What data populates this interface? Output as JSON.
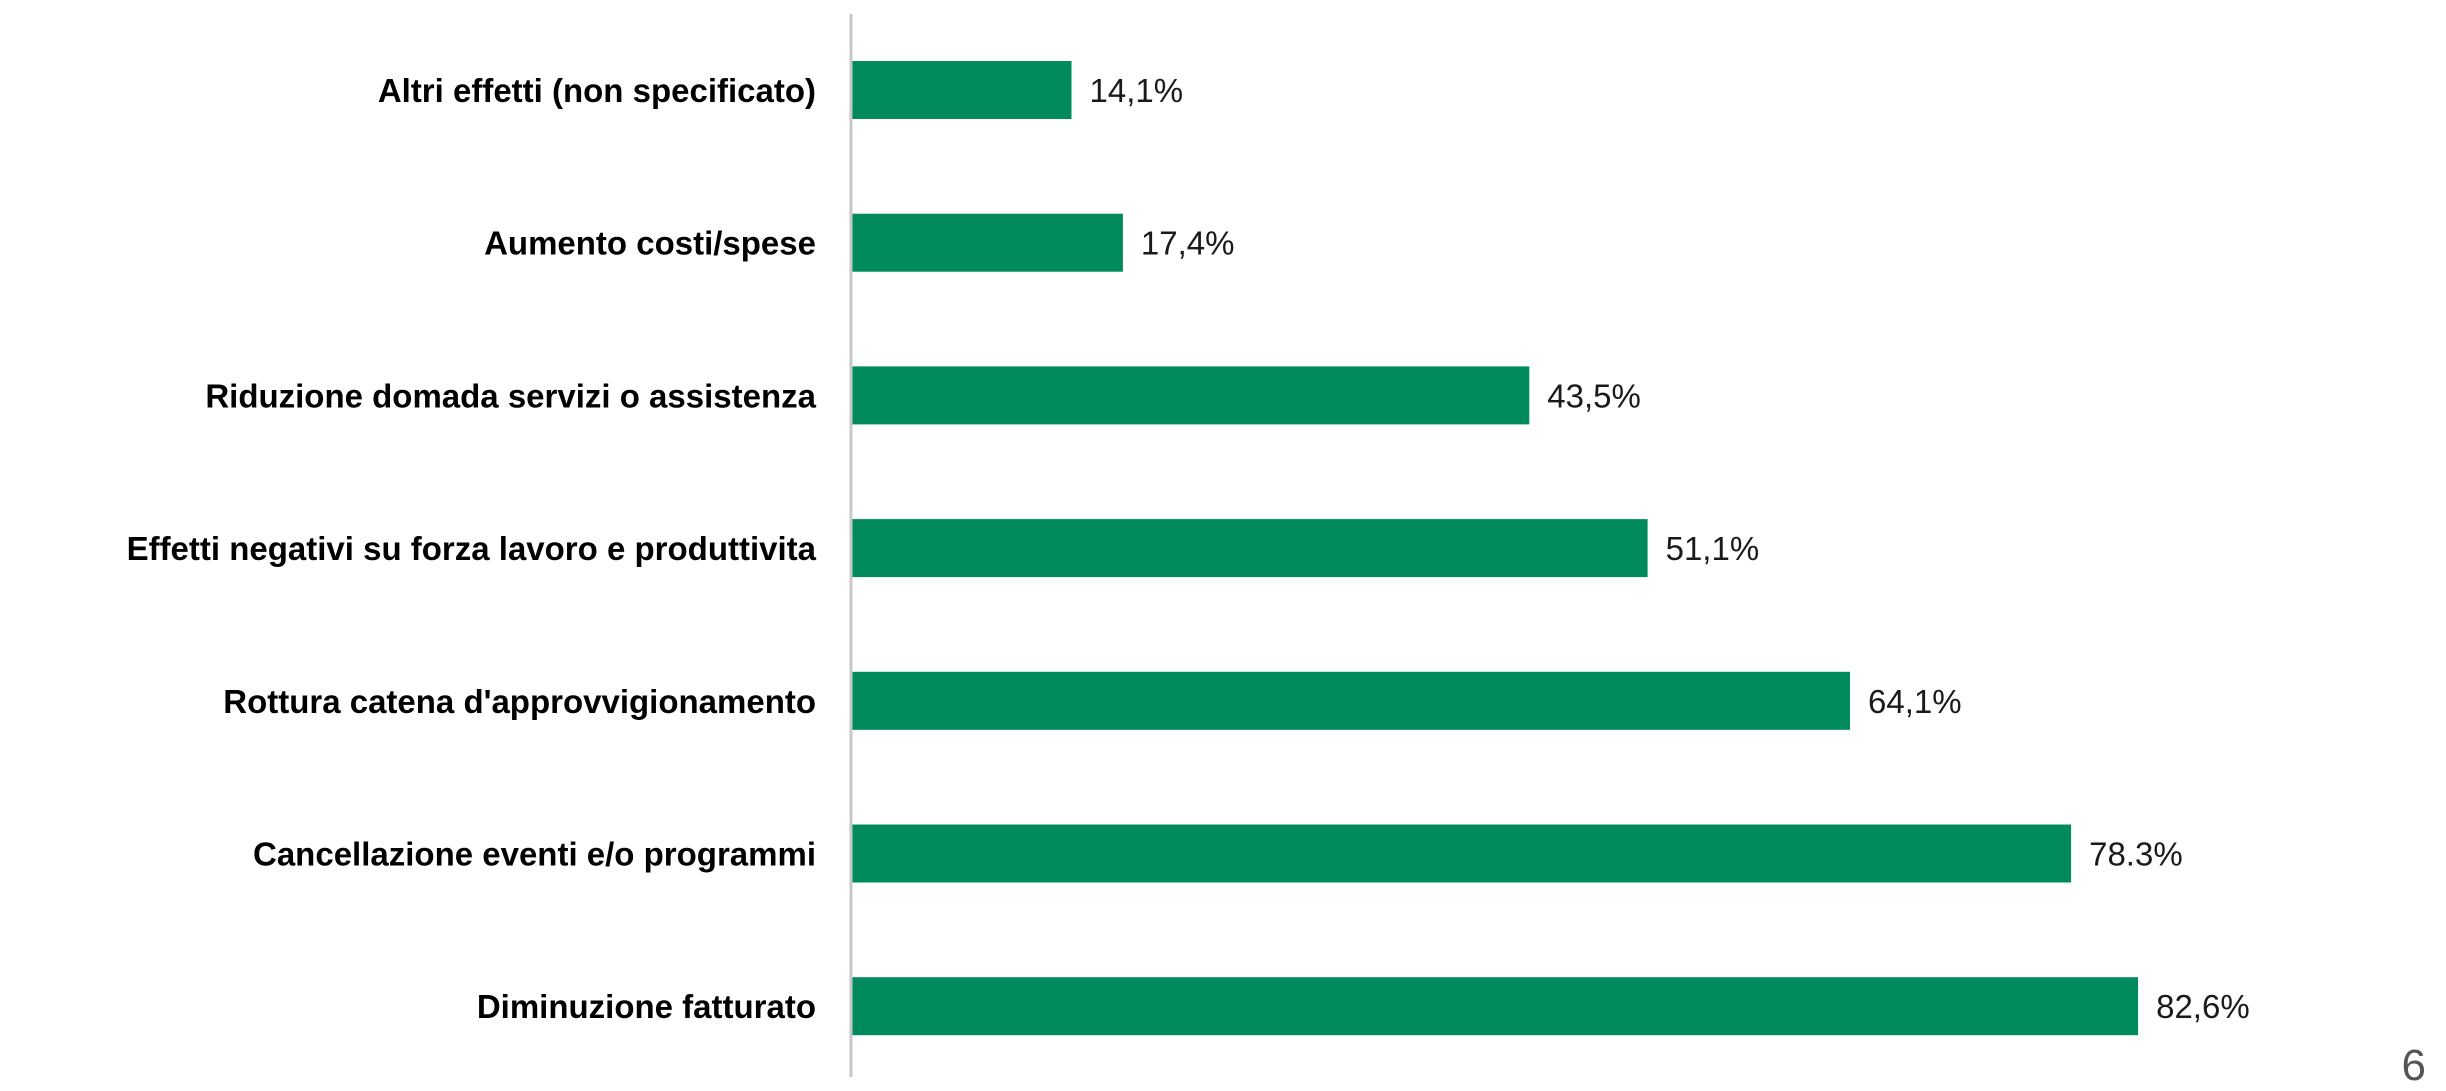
{
  "chart_data": {
    "type": "bar",
    "orientation": "horizontal",
    "categories": [
      "Altri effetti (non specificato)",
      "Aumento costi/spese",
      "Riduzione domada servizi o assistenza",
      "Effetti negativi su forza lavoro e produttivita",
      "Rottura catena d'approvvigionamento",
      "Cancellazione eventi e/o programmi",
      "Diminuzione fatturato"
    ],
    "values": [
      14.1,
      17.4,
      43.5,
      51.1,
      64.1,
      78.3,
      82.6
    ],
    "value_labels": [
      "14,1%",
      "17,4%",
      "43,5%",
      "51,1%",
      "64,1%",
      "78.3%",
      "82,6%"
    ],
    "xlim": [
      0,
      100
    ],
    "grid": false,
    "colors": {
      "bar": "#008a5e",
      "axis": "#c8c8c8"
    }
  },
  "page_number": "6"
}
